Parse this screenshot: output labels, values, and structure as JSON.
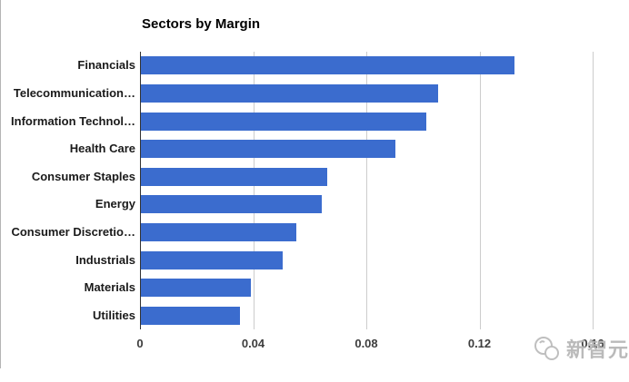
{
  "window": {
    "background": "#ffffff",
    "left_border_color": "#b4b4b4"
  },
  "chart_data": {
    "type": "bar",
    "orientation": "horizontal",
    "title": "Sectors by Margin",
    "categories": [
      "Financials",
      "Telecommunication…",
      "Information Technol…",
      "Health Care",
      "Consumer Staples",
      "Energy",
      "Consumer Discretio…",
      "Industrials",
      "Materials",
      "Utilities"
    ],
    "values": [
      0.132,
      0.105,
      0.101,
      0.09,
      0.066,
      0.064,
      0.055,
      0.05,
      0.039,
      0.035
    ],
    "xlabel": "",
    "ylabel": "",
    "xlim": [
      0,
      0.16
    ],
    "xticks": [
      0,
      0.04,
      0.08,
      0.12,
      0.16
    ],
    "xtick_labels": [
      "0",
      "0.04",
      "0.08",
      "0.12",
      "0.16"
    ],
    "bar_color": "#3b6cce",
    "gridline_color": "#cccccc",
    "axis_line_color": "#333333",
    "grid": true,
    "legend": "none"
  },
  "watermark": {
    "text": "新智元",
    "color": "#b3b3b3",
    "logo": "overlapping-circles-logo"
  }
}
